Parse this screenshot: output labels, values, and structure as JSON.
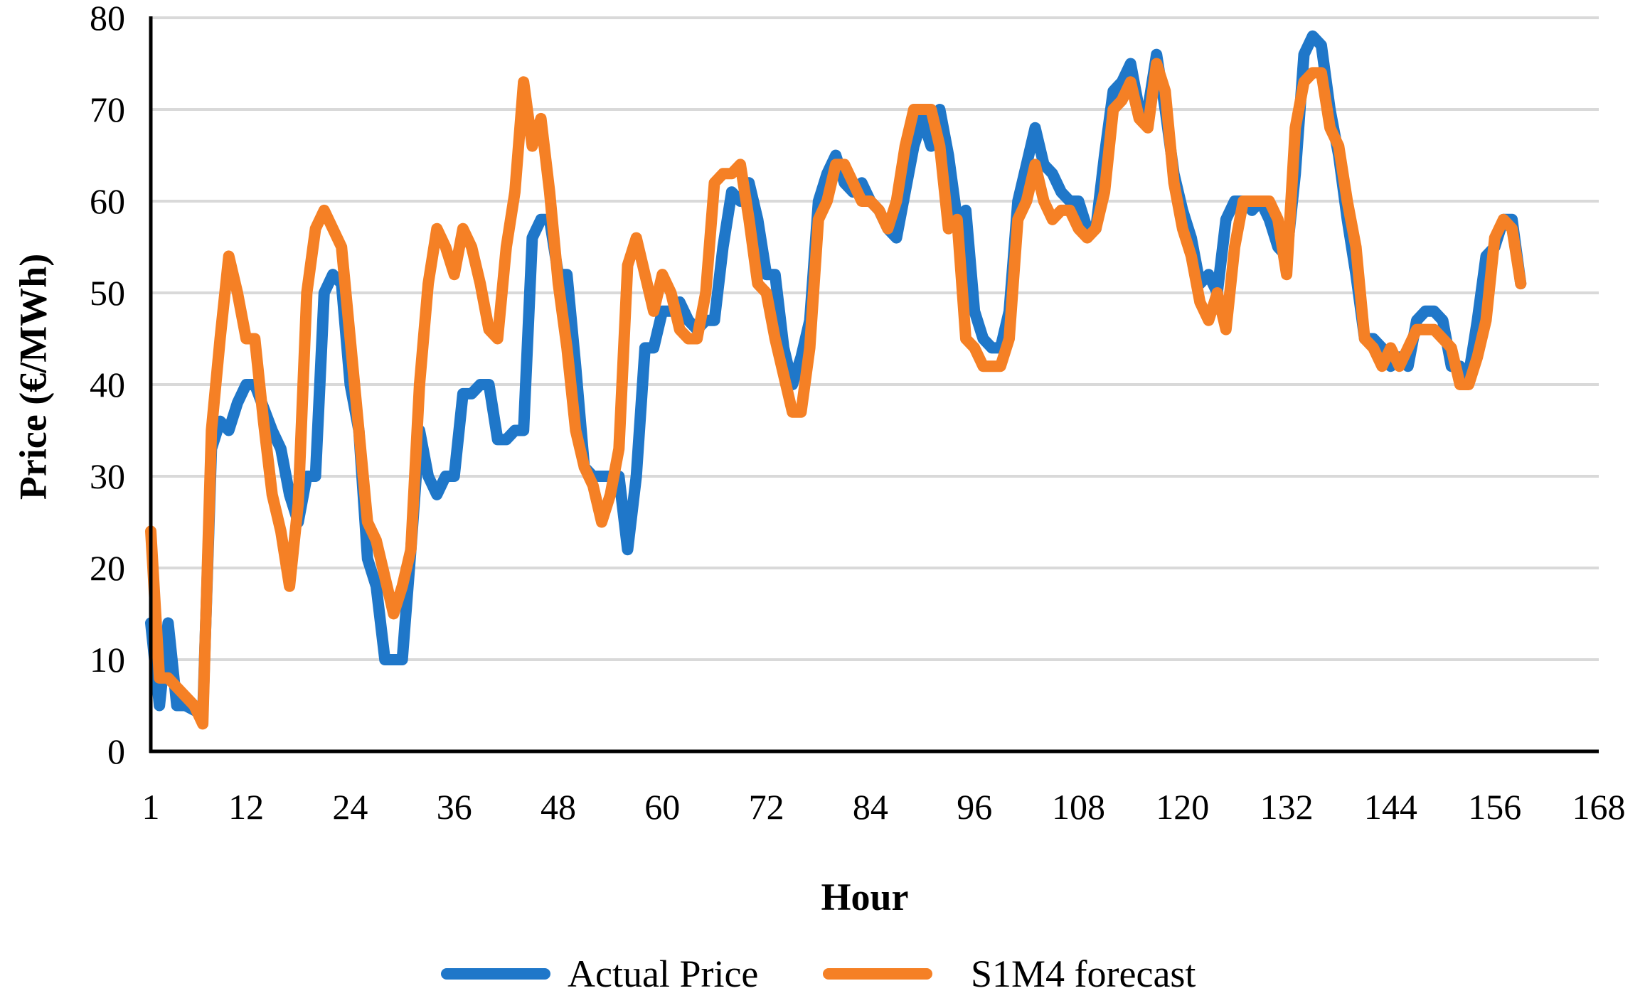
{
  "chart_data": {
    "type": "line",
    "title": "",
    "xlabel": "Hour",
    "ylabel": "Price (€/MWh)",
    "xlim": [
      1,
      168
    ],
    "ylim": [
      0,
      80
    ],
    "yticks": [
      "0",
      "10",
      "20",
      "30",
      "40",
      "50",
      "60",
      "70",
      "80"
    ],
    "xticks": [
      "1",
      "12",
      "24",
      "36",
      "48",
      "60",
      "72",
      "84",
      "96",
      "108",
      "120",
      "132",
      "144",
      "156",
      "168"
    ],
    "legend_position": "bottom",
    "series": [
      {
        "name": "Actual Price",
        "color": "#1f77c9",
        "points": [
          [
            1,
            14
          ],
          [
            2,
            5
          ],
          [
            3,
            14
          ],
          [
            4,
            5
          ],
          [
            5,
            5
          ],
          [
            7,
            4
          ],
          [
            8,
            33
          ],
          [
            9,
            36
          ],
          [
            10,
            35
          ],
          [
            11,
            38
          ],
          [
            12,
            40
          ],
          [
            13,
            40
          ],
          [
            15,
            35
          ],
          [
            16,
            33
          ],
          [
            17,
            28
          ],
          [
            18,
            25
          ],
          [
            19,
            30
          ],
          [
            20,
            30
          ],
          [
            21,
            50
          ],
          [
            22,
            52
          ],
          [
            23,
            51
          ],
          [
            24,
            40
          ],
          [
            25,
            35
          ],
          [
            26,
            21
          ],
          [
            27,
            18
          ],
          [
            28,
            10
          ],
          [
            29,
            10
          ],
          [
            30,
            10
          ],
          [
            31,
            22
          ],
          [
            32,
            35
          ],
          [
            33,
            30
          ],
          [
            34,
            28
          ],
          [
            35,
            30
          ],
          [
            36,
            30
          ],
          [
            37,
            39
          ],
          [
            38,
            39
          ],
          [
            39,
            40
          ],
          [
            40,
            40
          ],
          [
            41,
            34
          ],
          [
            42,
            34
          ],
          [
            43,
            35
          ],
          [
            44,
            35
          ],
          [
            45,
            56
          ],
          [
            46,
            58
          ],
          [
            47,
            58
          ],
          [
            48,
            52
          ],
          [
            49,
            52
          ],
          [
            50,
            42
          ],
          [
            51,
            31
          ],
          [
            52,
            30
          ],
          [
            53,
            30
          ],
          [
            54,
            30
          ],
          [
            55,
            30
          ],
          [
            56,
            22
          ],
          [
            57,
            30
          ],
          [
            58,
            44
          ],
          [
            59,
            44
          ],
          [
            60,
            48
          ],
          [
            61,
            48
          ],
          [
            62,
            49
          ],
          [
            63,
            47
          ],
          [
            64,
            46
          ],
          [
            65,
            47
          ],
          [
            66,
            47
          ],
          [
            67,
            55
          ],
          [
            68,
            61
          ],
          [
            69,
            60
          ],
          [
            70,
            62
          ],
          [
            71,
            58
          ],
          [
            72,
            52
          ],
          [
            73,
            52
          ],
          [
            74,
            44
          ],
          [
            75,
            40
          ],
          [
            76,
            43
          ],
          [
            77,
            47
          ],
          [
            78,
            60
          ],
          [
            79,
            63
          ],
          [
            80,
            65
          ],
          [
            81,
            62
          ],
          [
            82,
            61
          ],
          [
            83,
            62
          ],
          [
            84,
            60
          ],
          [
            85,
            59
          ],
          [
            86,
            57
          ],
          [
            87,
            56
          ],
          [
            88,
            61
          ],
          [
            89,
            66
          ],
          [
            90,
            69
          ],
          [
            91,
            66
          ],
          [
            92,
            70
          ],
          [
            93,
            65
          ],
          [
            94,
            58
          ],
          [
            95,
            59
          ],
          [
            96,
            48
          ],
          [
            97,
            45
          ],
          [
            98,
            44
          ],
          [
            99,
            44
          ],
          [
            100,
            48
          ],
          [
            101,
            60
          ],
          [
            102,
            64
          ],
          [
            103,
            68
          ],
          [
            104,
            64
          ],
          [
            105,
            63
          ],
          [
            106,
            61
          ],
          [
            107,
            60
          ],
          [
            108,
            60
          ],
          [
            109,
            57
          ],
          [
            110,
            57
          ],
          [
            111,
            65
          ],
          [
            112,
            72
          ],
          [
            113,
            73
          ],
          [
            114,
            75
          ],
          [
            115,
            70
          ],
          [
            116,
            70
          ],
          [
            117,
            76
          ],
          [
            118,
            70
          ],
          [
            119,
            63
          ],
          [
            120,
            59
          ],
          [
            121,
            56
          ],
          [
            122,
            51
          ],
          [
            123,
            52
          ],
          [
            124,
            50
          ],
          [
            125,
            58
          ],
          [
            126,
            60
          ],
          [
            127,
            60
          ],
          [
            128,
            59
          ],
          [
            129,
            60
          ],
          [
            130,
            58
          ],
          [
            131,
            55
          ],
          [
            132,
            54
          ],
          [
            133,
            63
          ],
          [
            134,
            76
          ],
          [
            135,
            78
          ],
          [
            136,
            77
          ],
          [
            137,
            70
          ],
          [
            138,
            65
          ],
          [
            139,
            58
          ],
          [
            140,
            52
          ],
          [
            141,
            45
          ],
          [
            142,
            45
          ],
          [
            143,
            44
          ],
          [
            144,
            42
          ],
          [
            145,
            43
          ],
          [
            146,
            42
          ],
          [
            147,
            47
          ],
          [
            148,
            48
          ],
          [
            149,
            48
          ],
          [
            150,
            47
          ],
          [
            151,
            42
          ],
          [
            152,
            42
          ],
          [
            153,
            41
          ],
          [
            154,
            47
          ],
          [
            155,
            54
          ],
          [
            156,
            55
          ],
          [
            157,
            58
          ],
          [
            158,
            58
          ],
          [
            159,
            51
          ]
        ]
      },
      {
        "name": "S1M4 forecast",
        "color": "#f58025",
        "points": [
          [
            1,
            24
          ],
          [
            2,
            8
          ],
          [
            3,
            8
          ],
          [
            4,
            7
          ],
          [
            5,
            6
          ],
          [
            6,
            5
          ],
          [
            7,
            3
          ],
          [
            8,
            35
          ],
          [
            9,
            45
          ],
          [
            10,
            54
          ],
          [
            11,
            50
          ],
          [
            12,
            45
          ],
          [
            13,
            45
          ],
          [
            14,
            36
          ],
          [
            15,
            28
          ],
          [
            16,
            24
          ],
          [
            17,
            18
          ],
          [
            18,
            27
          ],
          [
            19,
            50
          ],
          [
            20,
            57
          ],
          [
            21,
            59
          ],
          [
            22,
            57
          ],
          [
            23,
            55
          ],
          [
            24,
            45
          ],
          [
            25,
            35
          ],
          [
            26,
            25
          ],
          [
            27,
            23
          ],
          [
            28,
            19
          ],
          [
            29,
            15
          ],
          [
            30,
            18
          ],
          [
            31,
            22
          ],
          [
            32,
            40
          ],
          [
            33,
            51
          ],
          [
            34,
            57
          ],
          [
            35,
            55
          ],
          [
            36,
            52
          ],
          [
            37,
            57
          ],
          [
            38,
            55
          ],
          [
            39,
            51
          ],
          [
            40,
            46
          ],
          [
            41,
            45
          ],
          [
            42,
            55
          ],
          [
            43,
            61
          ],
          [
            44,
            73
          ],
          [
            45,
            66
          ],
          [
            46,
            69
          ],
          [
            47,
            61
          ],
          [
            48,
            51
          ],
          [
            49,
            44
          ],
          [
            50,
            35
          ],
          [
            51,
            31
          ],
          [
            52,
            29
          ],
          [
            53,
            25
          ],
          [
            54,
            28
          ],
          [
            55,
            33
          ],
          [
            56,
            53
          ],
          [
            57,
            56
          ],
          [
            58,
            52
          ],
          [
            59,
            48
          ],
          [
            60,
            52
          ],
          [
            61,
            50
          ],
          [
            62,
            46
          ],
          [
            63,
            45
          ],
          [
            64,
            45
          ],
          [
            65,
            50
          ],
          [
            66,
            62
          ],
          [
            67,
            63
          ],
          [
            68,
            63
          ],
          [
            69,
            64
          ],
          [
            70,
            58
          ],
          [
            71,
            51
          ],
          [
            72,
            50
          ],
          [
            73,
            45
          ],
          [
            74,
            41
          ],
          [
            75,
            37
          ],
          [
            76,
            37
          ],
          [
            77,
            44
          ],
          [
            78,
            58
          ],
          [
            79,
            60
          ],
          [
            80,
            64
          ],
          [
            81,
            64
          ],
          [
            82,
            62
          ],
          [
            83,
            60
          ],
          [
            84,
            60
          ],
          [
            85,
            59
          ],
          [
            86,
            57
          ],
          [
            87,
            60
          ],
          [
            88,
            66
          ],
          [
            89,
            70
          ],
          [
            90,
            70
          ],
          [
            91,
            70
          ],
          [
            92,
            66
          ],
          [
            93,
            57
          ],
          [
            94,
            58
          ],
          [
            95,
            45
          ],
          [
            96,
            44
          ],
          [
            97,
            42
          ],
          [
            98,
            42
          ],
          [
            99,
            42
          ],
          [
            100,
            45
          ],
          [
            101,
            58
          ],
          [
            102,
            60
          ],
          [
            103,
            64
          ],
          [
            104,
            60
          ],
          [
            105,
            58
          ],
          [
            106,
            59
          ],
          [
            107,
            59
          ],
          [
            108,
            57
          ],
          [
            109,
            56
          ],
          [
            110,
            57
          ],
          [
            111,
            61
          ],
          [
            112,
            70
          ],
          [
            113,
            71
          ],
          [
            114,
            73
          ],
          [
            115,
            69
          ],
          [
            116,
            68
          ],
          [
            117,
            75
          ],
          [
            118,
            72
          ],
          [
            119,
            62
          ],
          [
            120,
            57
          ],
          [
            121,
            54
          ],
          [
            122,
            49
          ],
          [
            123,
            47
          ],
          [
            124,
            50
          ],
          [
            125,
            46
          ],
          [
            126,
            55
          ],
          [
            127,
            60
          ],
          [
            128,
            60
          ],
          [
            129,
            60
          ],
          [
            130,
            60
          ],
          [
            131,
            58
          ],
          [
            132,
            52
          ],
          [
            133,
            68
          ],
          [
            134,
            73
          ],
          [
            135,
            74
          ],
          [
            136,
            74
          ],
          [
            137,
            68
          ],
          [
            138,
            66
          ],
          [
            139,
            60
          ],
          [
            140,
            55
          ],
          [
            141,
            45
          ],
          [
            142,
            44
          ],
          [
            143,
            42
          ],
          [
            144,
            44
          ],
          [
            145,
            42
          ],
          [
            146,
            44
          ],
          [
            147,
            46
          ],
          [
            148,
            46
          ],
          [
            149,
            46
          ],
          [
            150,
            45
          ],
          [
            151,
            44
          ],
          [
            152,
            40
          ],
          [
            153,
            40
          ],
          [
            154,
            43
          ],
          [
            155,
            47
          ],
          [
            156,
            56
          ],
          [
            157,
            58
          ],
          [
            158,
            57
          ],
          [
            159,
            51
          ]
        ]
      }
    ]
  }
}
